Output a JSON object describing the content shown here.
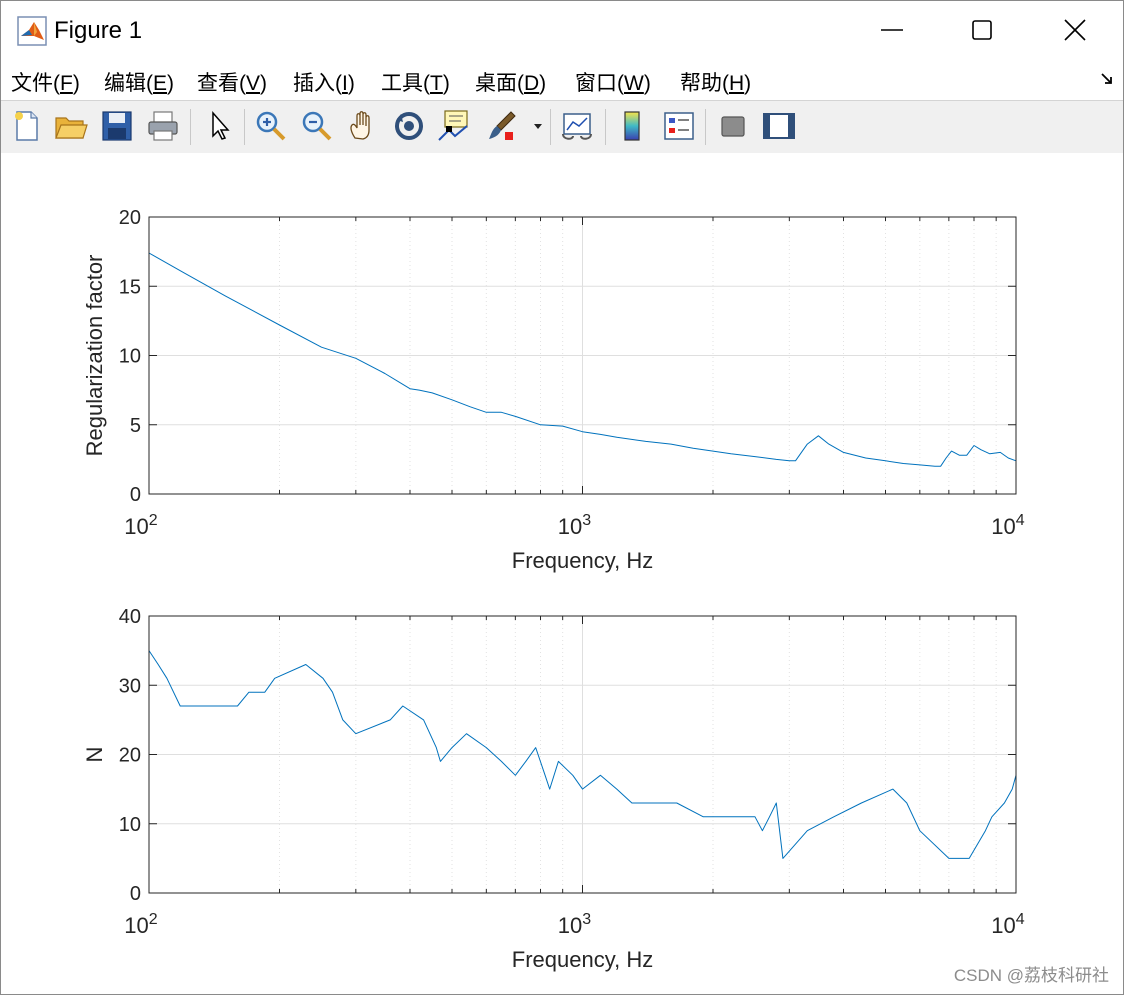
{
  "window": {
    "title": "Figure 1"
  },
  "menu": [
    {
      "label": "文件(",
      "key": "F",
      "tail": ")"
    },
    {
      "label": "编辑(",
      "key": "E",
      "tail": ")"
    },
    {
      "label": "查看(",
      "key": "V",
      "tail": ")"
    },
    {
      "label": "插入(",
      "key": "I",
      "tail": ")"
    },
    {
      "label": "工具(",
      "key": "T",
      "tail": ")"
    },
    {
      "label": "桌面(",
      "key": "D",
      "tail": ")"
    },
    {
      "label": "窗口(",
      "key": "W",
      "tail": ")"
    },
    {
      "label": "帮助(",
      "key": "H",
      "tail": ")"
    }
  ],
  "toolbar": [
    "new-figure-icon",
    "open-file-icon",
    "save-icon",
    "print-icon",
    "pointer-icon",
    "zoom-in-icon",
    "zoom-out-icon",
    "pan-hand-icon",
    "rotate-3d-icon",
    "data-cursor-icon",
    "brush-icon",
    "brush-dropdown-icon",
    "link-plot-icon",
    "colorbar-icon",
    "legend-icon",
    "hide-plot-tools-icon",
    "show-plot-tools-icon"
  ],
  "colors": {
    "line": "#0072bd",
    "grid": "#dfdfdf",
    "axis": "#262626"
  },
  "chart_data": [
    {
      "type": "line",
      "xlabel": "Frequency, Hz",
      "ylabel": "Regularization factor",
      "xscale": "log",
      "xlim": [
        100,
        10000
      ],
      "ylim": [
        0,
        20
      ],
      "yticks": [
        0,
        5,
        10,
        15,
        20
      ],
      "xticks": [
        {
          "base": "10",
          "exp": "2"
        },
        {
          "base": "10",
          "exp": "3"
        },
        {
          "base": "10",
          "exp": "4"
        }
      ],
      "grid": true,
      "series": [
        {
          "x": [
            100,
            120,
            150,
            200,
            250,
            300,
            350,
            400,
            420,
            450,
            500,
            550,
            600,
            650,
            700,
            800,
            900,
            1000,
            1100,
            1200,
            1400,
            1600,
            1800,
            2000,
            2200,
            2500,
            2800,
            3000,
            3100,
            3300,
            3500,
            3700,
            4000,
            4500,
            5000,
            5500,
            6000,
            6500,
            6700,
            6900,
            7100,
            7400,
            7700,
            8000,
            8300,
            8700,
            9200,
            9600,
            10000
          ],
          "y": [
            17.4,
            16.0,
            14.3,
            12.2,
            10.6,
            9.8,
            8.7,
            7.6,
            7.5,
            7.3,
            6.8,
            6.3,
            5.9,
            5.9,
            5.6,
            5.0,
            4.9,
            4.5,
            4.3,
            4.1,
            3.8,
            3.6,
            3.3,
            3.1,
            2.9,
            2.7,
            2.5,
            2.4,
            2.4,
            3.6,
            4.2,
            3.6,
            3.0,
            2.6,
            2.4,
            2.2,
            2.1,
            2.0,
            2.0,
            2.6,
            3.1,
            2.8,
            2.8,
            3.5,
            3.2,
            2.9,
            3.0,
            2.6,
            2.4
          ]
        }
      ]
    },
    {
      "type": "line",
      "xlabel": "Frequency, Hz",
      "ylabel": "N",
      "xscale": "log",
      "xlim": [
        100,
        10000
      ],
      "ylim": [
        0,
        40
      ],
      "yticks": [
        0,
        10,
        20,
        30,
        40
      ],
      "xticks": [
        {
          "base": "10",
          "exp": "2"
        },
        {
          "base": "10",
          "exp": "3"
        },
        {
          "base": "10",
          "exp": "4"
        }
      ],
      "grid": true,
      "series": [
        {
          "x": [
            100,
            105,
            110,
            118,
            160,
            170,
            185,
            195,
            230,
            252,
            265,
            280,
            300,
            360,
            385,
            430,
            460,
            470,
            500,
            540,
            600,
            650,
            700,
            740,
            780,
            820,
            840,
            880,
            950,
            1000,
            1100,
            1200,
            1300,
            1500,
            1650,
            1900,
            2500,
            2600,
            2700,
            2800,
            2900,
            3300,
            3800,
            4400,
            5200,
            5600,
            6000,
            7000,
            7800,
            8500,
            8800,
            9400,
            9800,
            10000
          ],
          "y": [
            35,
            33,
            31,
            27,
            27,
            29,
            29,
            31,
            33,
            31,
            29,
            25,
            23,
            25,
            27,
            25,
            21,
            19,
            21,
            23,
            21,
            19,
            17,
            19,
            21,
            17,
            15,
            19,
            17,
            15,
            17,
            15,
            13,
            13,
            13,
            11,
            11,
            9,
            11,
            13,
            5,
            9,
            11,
            13,
            15,
            13,
            9,
            5,
            5,
            9,
            11,
            13,
            15,
            17
          ]
        }
      ]
    }
  ],
  "watermark": "CSDN @荔枝科研社"
}
